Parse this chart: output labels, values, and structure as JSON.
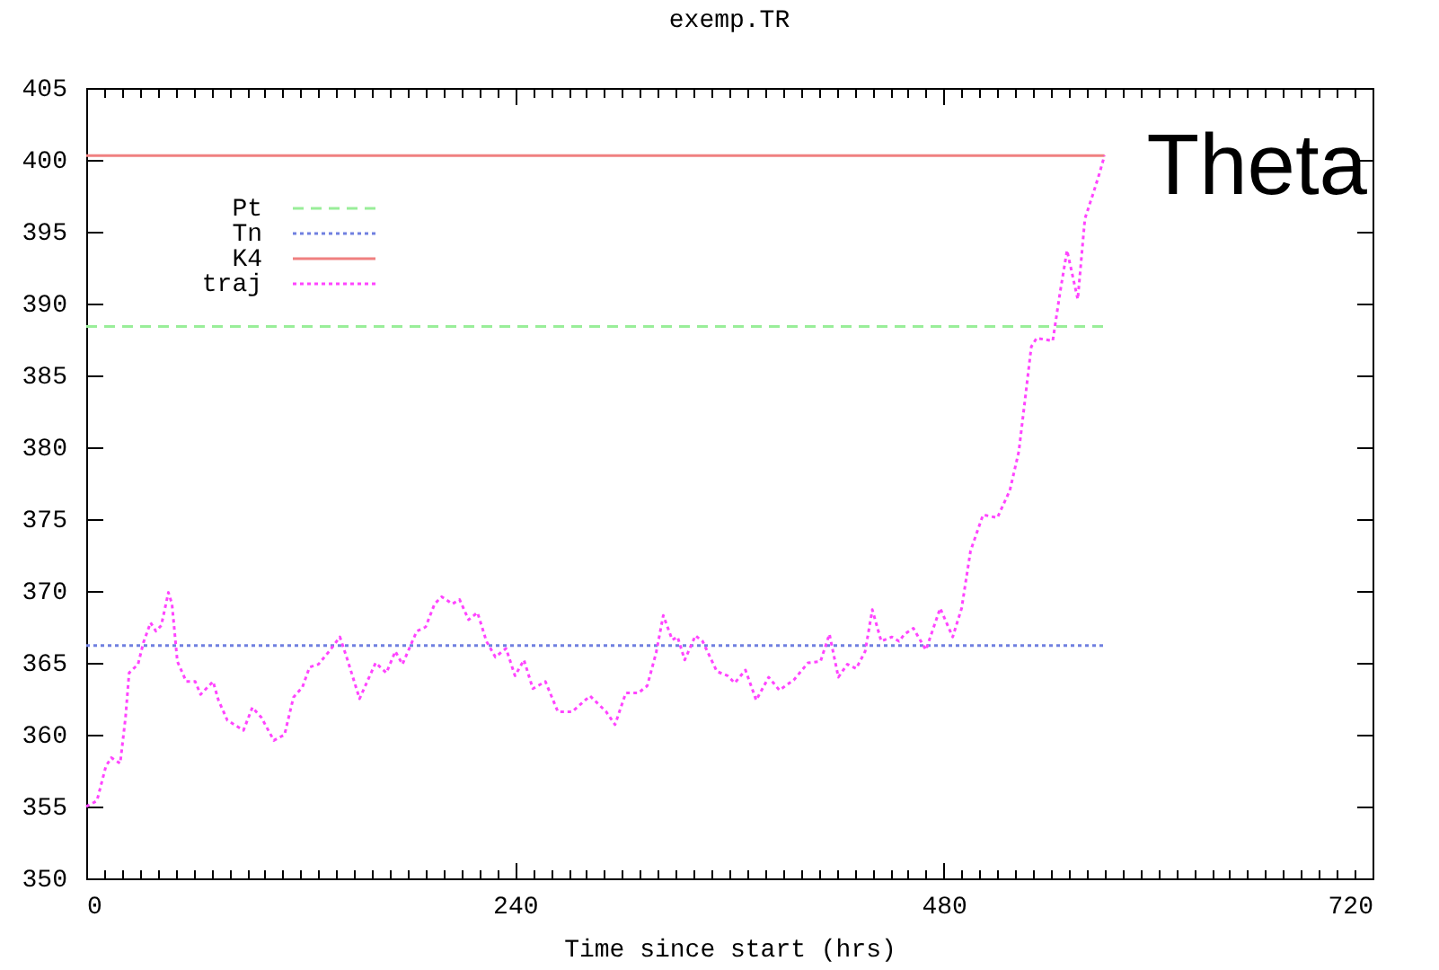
{
  "chart_data": {
    "type": "line",
    "title": "exemp.TR",
    "xlabel": "Time since start (hrs)",
    "annotations": [
      "Theta"
    ],
    "xlim": [
      0,
      720
    ],
    "xticks": [
      0,
      {
        "value": 10,
        "label": null
      },
      {
        "value": 20,
        "label": null
      },
      {
        "value": 30,
        "label": null
      },
      {
        "value": 40,
        "label": null
      },
      {
        "value": 50,
        "label": null
      },
      {
        "value": 60,
        "label": null
      },
      {
        "value": 70,
        "label": null
      },
      {
        "value": 80,
        "label": null
      },
      {
        "value": 90,
        "label": null
      },
      {
        "value": 100,
        "label": null
      },
      {
        "value": 110,
        "label": null
      },
      {
        "value": 120,
        "label": null
      },
      {
        "value": 130,
        "label": null
      },
      {
        "value": 140,
        "label": null
      },
      {
        "value": 150,
        "label": null
      },
      {
        "value": 160,
        "label": null
      },
      {
        "value": 170,
        "label": null
      },
      {
        "value": 180,
        "label": null
      },
      {
        "value": 190,
        "label": null
      },
      {
        "value": 200,
        "label": null
      },
      {
        "value": 210,
        "label": null
      },
      {
        "value": 220,
        "label": null
      },
      {
        "value": 230,
        "label": null
      },
      240,
      {
        "value": 250,
        "label": null
      },
      {
        "value": 260,
        "label": null
      },
      {
        "value": 270,
        "label": null
      },
      {
        "value": 280,
        "label": null
      },
      {
        "value": 290,
        "label": null
      },
      {
        "value": 300,
        "label": null
      },
      {
        "value": 310,
        "label": null
      },
      {
        "value": 320,
        "label": null
      },
      {
        "value": 330,
        "label": null
      },
      {
        "value": 340,
        "label": null
      },
      {
        "value": 350,
        "label": null
      },
      {
        "value": 360,
        "label": null
      },
      {
        "value": 370,
        "label": null
      },
      {
        "value": 380,
        "label": null
      },
      {
        "value": 390,
        "label": null
      },
      {
        "value": 400,
        "label": null
      },
      {
        "value": 410,
        "label": null
      },
      {
        "value": 420,
        "label": null
      },
      {
        "value": 430,
        "label": null
      },
      {
        "value": 440,
        "label": null
      },
      {
        "value": 450,
        "label": null
      },
      {
        "value": 460,
        "label": null
      },
      {
        "value": 470,
        "label": null
      },
      480,
      {
        "value": 490,
        "label": null
      },
      {
        "value": 500,
        "label": null
      },
      {
        "value": 510,
        "label": null
      },
      {
        "value": 520,
        "label": null
      },
      {
        "value": 530,
        "label": null
      },
      {
        "value": 540,
        "label": null
      },
      {
        "value": 550,
        "label": null
      },
      {
        "value": 560,
        "label": null
      },
      {
        "value": 570,
        "label": null
      },
      {
        "value": 580,
        "label": null
      },
      {
        "value": 590,
        "label": null
      },
      {
        "value": 600,
        "label": null
      },
      {
        "value": 610,
        "label": null
      },
      {
        "value": 620,
        "label": null
      },
      {
        "value": 630,
        "label": null
      },
      {
        "value": 640,
        "label": null
      },
      {
        "value": 650,
        "label": null
      },
      {
        "value": 660,
        "label": null
      },
      {
        "value": 670,
        "label": null
      },
      {
        "value": 680,
        "label": null
      },
      {
        "value": 690,
        "label": null
      },
      {
        "value": 700,
        "label": null
      },
      {
        "value": 710,
        "label": null
      },
      720
    ],
    "ylim": [
      350,
      405
    ],
    "yticks": [
      350,
      355,
      360,
      365,
      370,
      375,
      380,
      385,
      390,
      395,
      400,
      405
    ],
    "legend": "top left",
    "series": [
      {
        "name": "Pt",
        "color": "#99ee99",
        "line_style": "dashed",
        "x": [
          0,
          570
        ],
        "values": [
          388.4,
          388.4
        ]
      },
      {
        "name": "Tn",
        "color": "#7080e0",
        "line_style": "dotted",
        "x": [
          0,
          570
        ],
        "values": [
          366.2,
          366.2
        ]
      },
      {
        "name": "K4",
        "color": "#f08080",
        "line_style": "solid",
        "x": [
          0,
          570
        ],
        "values": [
          400.3,
          400.3
        ]
      },
      {
        "name": "traj",
        "color": "#ff44ff",
        "line_style": "dotted",
        "x": [
          0,
          6,
          11,
          14,
          19,
          22,
          24,
          29,
          32,
          36,
          39,
          42,
          46,
          48,
          51,
          56,
          61,
          64,
          71,
          74,
          79,
          88,
          93,
          98,
          105,
          111,
          116,
          121,
          125,
          130,
          136,
          142,
          146,
          153,
          158,
          162,
          168,
          173,
          177,
          185,
          190,
          195,
          199,
          205,
          209,
          214,
          219,
          224,
          229,
          235,
          240,
          245,
          250,
          257,
          264,
          272,
          282,
          291,
          296,
          302,
          309,
          314,
          319,
          323,
          328,
          331,
          335,
          341,
          345,
          353,
          359,
          363,
          369,
          375,
          382,
          388,
          396,
          404,
          411,
          416,
          421,
          426,
          431,
          436,
          440,
          445,
          451,
          455,
          458,
          463,
          470,
          478,
          485,
          490,
          495,
          502,
          510,
          517,
          522,
          525,
          529,
          532,
          541,
          545,
          549,
          555,
          559,
          564,
          567,
          570
        ],
        "values": [
          355.0,
          355.4,
          357.8,
          358.4,
          358.0,
          361.2,
          364.3,
          364.9,
          366.4,
          367.8,
          367.2,
          367.6,
          369.9,
          369.1,
          365.1,
          363.7,
          363.7,
          362.8,
          363.7,
          362.4,
          361.0,
          360.3,
          361.9,
          361.2,
          359.6,
          360.0,
          362.6,
          363.3,
          364.7,
          364.9,
          365.8,
          366.8,
          365.3,
          362.5,
          363.9,
          365.0,
          364.3,
          365.8,
          364.9,
          367.2,
          367.5,
          369.1,
          369.6,
          369.1,
          369.4,
          368.0,
          368.5,
          366.5,
          365.4,
          366.0,
          364.1,
          365.2,
          363.2,
          363.7,
          361.6,
          361.6,
          362.7,
          361.6,
          360.7,
          362.9,
          362.9,
          363.4,
          365.7,
          368.3,
          366.6,
          366.8,
          365.2,
          366.9,
          366.5,
          364.4,
          364.1,
          363.6,
          364.5,
          362.4,
          364.0,
          363.1,
          363.8,
          365.0,
          365.1,
          367.0,
          364.0,
          364.9,
          364.6,
          365.8,
          368.7,
          366.5,
          366.8,
          366.5,
          367.0,
          367.4,
          365.9,
          368.8,
          366.8,
          368.8,
          372.8,
          375.3,
          375.1,
          377.0,
          379.7,
          382.8,
          387.0,
          387.6,
          387.4,
          390.7,
          393.7,
          390.3,
          395.9,
          397.8,
          399.0,
          400.3
        ]
      }
    ]
  }
}
